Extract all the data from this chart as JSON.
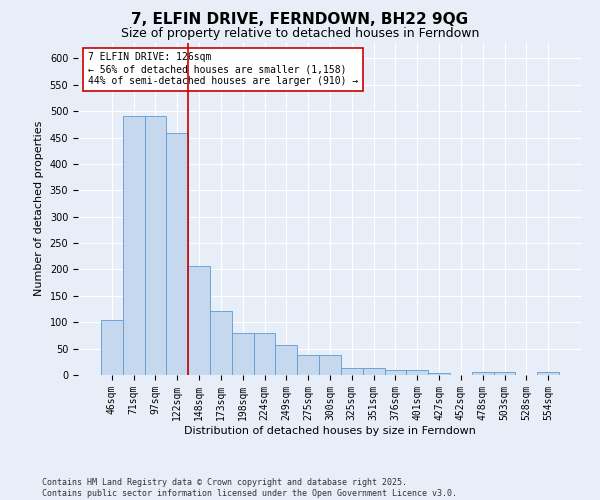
{
  "title": "7, ELFIN DRIVE, FERNDOWN, BH22 9QG",
  "subtitle": "Size of property relative to detached houses in Ferndown",
  "xlabel": "Distribution of detached houses by size in Ferndown",
  "ylabel": "Number of detached properties",
  "categories": [
    "46sqm",
    "71sqm",
    "97sqm",
    "122sqm",
    "148sqm",
    "173sqm",
    "198sqm",
    "224sqm",
    "249sqm",
    "275sqm",
    "300sqm",
    "325sqm",
    "351sqm",
    "376sqm",
    "401sqm",
    "427sqm",
    "452sqm",
    "478sqm",
    "503sqm",
    "528sqm",
    "554sqm"
  ],
  "values": [
    105,
    490,
    490,
    458,
    207,
    122,
    80,
    80,
    57,
    37,
    37,
    14,
    14,
    10,
    10,
    3,
    0,
    6,
    6,
    0,
    6
  ],
  "bar_color": "#c5d8ed",
  "bar_edge_color": "#5b9bd5",
  "vline_x": 3.5,
  "vline_color": "#cc0000",
  "annotation_text": "7 ELFIN DRIVE: 126sqm\n← 56% of detached houses are smaller (1,158)\n44% of semi-detached houses are larger (910) →",
  "annotation_box_color": "#ffffff",
  "annotation_box_edge": "#cc0000",
  "footer": "Contains HM Land Registry data © Crown copyright and database right 2025.\nContains public sector information licensed under the Open Government Licence v3.0.",
  "ylim": [
    0,
    630
  ],
  "yticks": [
    0,
    50,
    100,
    150,
    200,
    250,
    300,
    350,
    400,
    450,
    500,
    550,
    600
  ],
  "background_color": "#e8eef7",
  "plot_bg_color": "#e8eef7",
  "grid_color": "#ffffff",
  "title_fontsize": 11,
  "subtitle_fontsize": 9,
  "tick_fontsize": 7,
  "label_fontsize": 8,
  "annotation_fontsize": 7
}
